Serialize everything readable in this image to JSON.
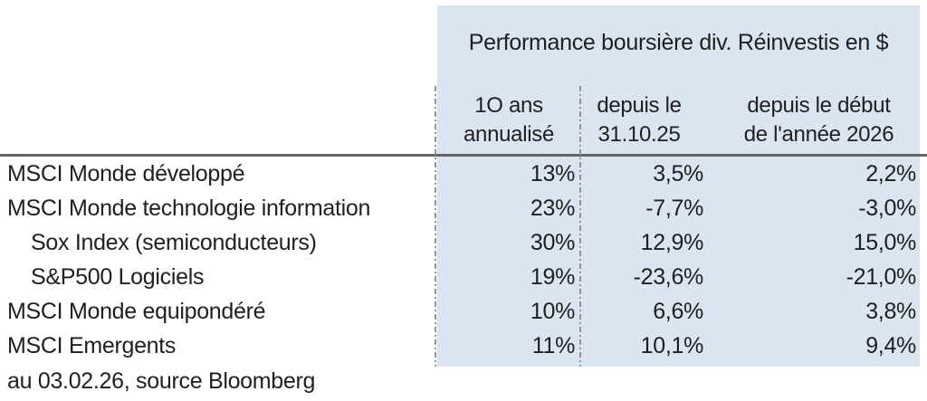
{
  "colors": {
    "panel_blue": "#dbe5f1",
    "rule_gray": "#666666",
    "dash_gray": "#8f949b",
    "text": "#1f1f1f"
  },
  "table": {
    "title": "Performance boursière div. Réinvestis en $",
    "columns": [
      {
        "line1": "1O ans",
        "line2": "annualisé"
      },
      {
        "line1": "depuis le",
        "line2": "31.10.25"
      },
      {
        "line1": "depuis le début",
        "line2": "de l'année 2026"
      }
    ],
    "rows": [
      {
        "label": "MSCI Monde développé",
        "values": [
          "13%",
          "3,5%",
          "2,2%"
        ]
      },
      {
        "label": "MSCI Monde technologie information",
        "values": [
          "23%",
          "-7,7%",
          "-3,0%"
        ]
      },
      {
        "label": "Sox Index (semiconducteurs)",
        "values": [
          "30%",
          "12,9%",
          "15,0%"
        ]
      },
      {
        "label": "S&P500 Logiciels",
        "values": [
          "19%",
          "-23,6%",
          "-21,0%"
        ]
      },
      {
        "label": "MSCI Monde equipondéré",
        "values": [
          "10%",
          "6,6%",
          "3,8%"
        ]
      },
      {
        "label": "MSCI Emergents",
        "values": [
          "11%",
          "10,1%",
          "9,4%"
        ]
      }
    ],
    "footnote": "au 03.02.26, source Bloomberg"
  }
}
